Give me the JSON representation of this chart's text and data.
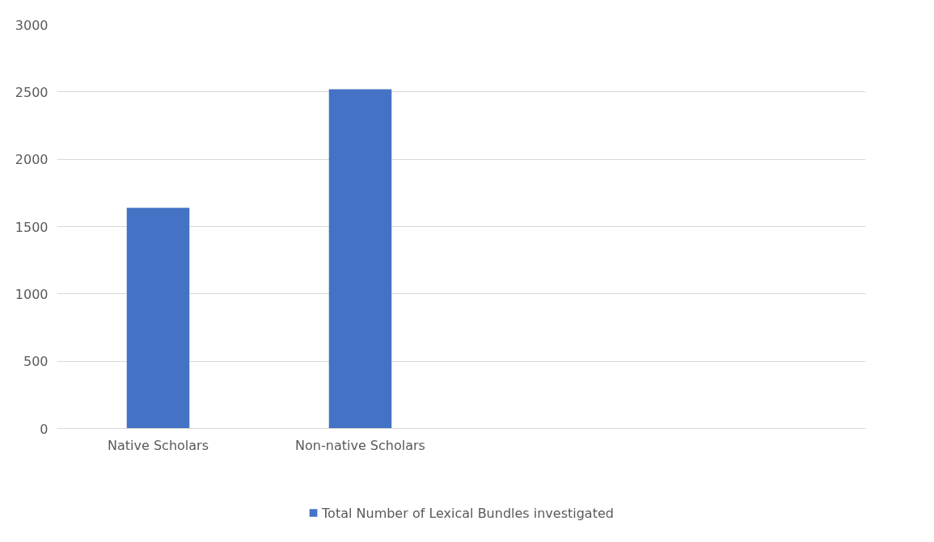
{
  "chart_data": {
    "type": "bar",
    "categories": [
      "Native Scholars",
      "Non-native Scholars",
      null,
      null
    ],
    "series": [
      {
        "name": "Total Number of Lexical Bundles investigated",
        "color": "#4472c4",
        "values": [
          1640,
          2520,
          null,
          null
        ]
      }
    ],
    "ylim": [
      0,
      3000
    ],
    "yticks": [
      0,
      500,
      1000,
      1500,
      2000,
      2500,
      3000
    ],
    "grid": "y",
    "legend": "bottom"
  }
}
